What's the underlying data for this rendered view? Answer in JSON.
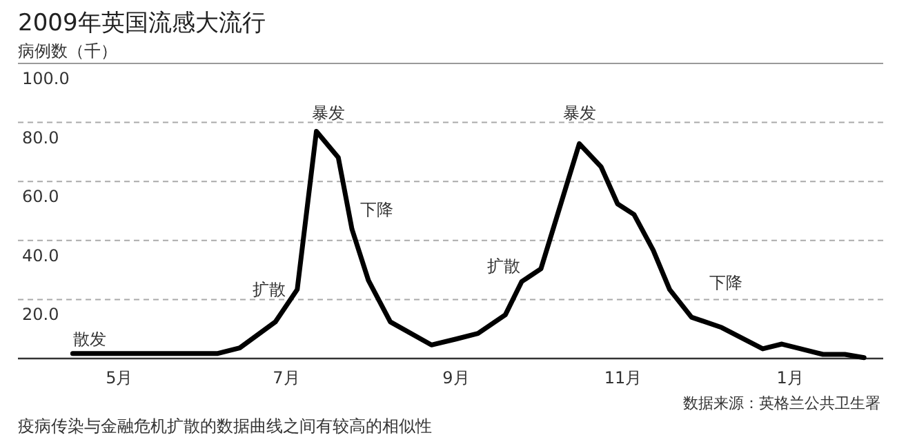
{
  "chart_data": {
    "type": "line",
    "title": "2009年英国流感大流行",
    "ylabel": "病例数（千）",
    "x": [
      "2009-04-14",
      "2009-06-06",
      "2009-06-14",
      "2009-06-27",
      "2009-07-05",
      "2009-07-12",
      "2009-07-20",
      "2009-07-25",
      "2009-07-31",
      "2009-08-08",
      "2009-08-23",
      "2009-09-01",
      "2009-09-09",
      "2009-09-19",
      "2009-09-25",
      "2009-10-02",
      "2009-10-16",
      "2009-10-24",
      "2009-10-30",
      "2009-11-05",
      "2009-11-12",
      "2009-11-18",
      "2009-11-26",
      "2009-12-07",
      "2009-12-22",
      "2009-12-29",
      "2010-01-13",
      "2010-01-21",
      "2010-01-28"
    ],
    "series": [
      {
        "color": "#000000",
        "values": [
          1.7,
          1.7,
          3.6,
          12.4,
          23.4,
          77,
          68.1,
          43.8,
          26.5,
          12.4,
          4.6,
          6.6,
          8.5,
          14.8,
          26.1,
          30.4,
          72.8,
          64.9,
          52.4,
          48.8,
          36.7,
          23.4,
          14,
          10.5,
          3.3,
          4.9,
          1.4,
          1.4,
          0.3
        ]
      }
    ],
    "xlim": [
      "2009-03-25",
      "2010-02-04"
    ],
    "ylim": [
      0,
      100
    ],
    "xticks": [
      {
        "value": "2009-05-01",
        "label": "5月"
      },
      {
        "value": "2009-07-01",
        "label": "7月"
      },
      {
        "value": "2009-09-01",
        "label": "9月"
      },
      {
        "value": "2009-11-01",
        "label": "11月"
      },
      {
        "value": "2010-01-01",
        "label": "1月"
      }
    ],
    "yticks": [
      {
        "value": 20,
        "label": "20.0"
      },
      {
        "value": 40,
        "label": "40.0"
      },
      {
        "value": 60,
        "label": "60.0"
      },
      {
        "value": 80,
        "label": "80.0"
      },
      {
        "value": 100,
        "label": "100.0"
      }
    ],
    "grid": "y",
    "marker": "none",
    "line_style": "solid",
    "annotations": [
      "散发",
      "扩散",
      "暴发",
      "下降",
      "扩散",
      "暴发",
      "下降",
      "数据来源：英格兰公共卫生署",
      "疫病传染与金融危机扩散的数据曲线之间有较高的相似性"
    ]
  }
}
